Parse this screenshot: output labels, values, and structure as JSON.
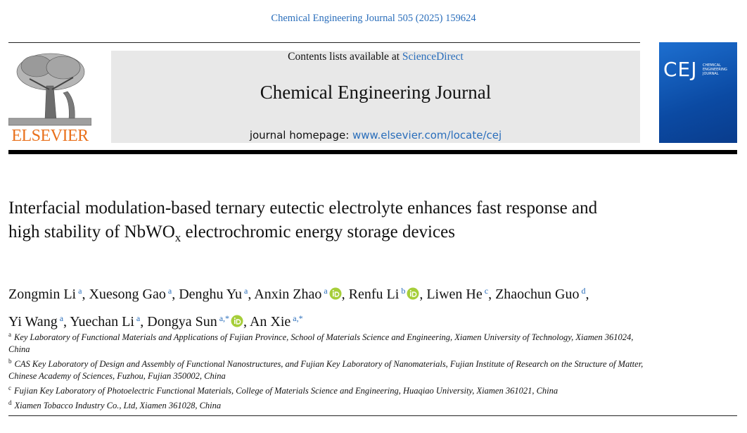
{
  "header": {
    "citation": "Chemical Engineering Journal 505 (2025) 159624",
    "publisher": "ELSEVIER",
    "contents_prefix": "Contents lists available at ",
    "contents_link": "ScienceDirect",
    "journal": "Chemical Engineering Journal",
    "homepage_prefix": "journal homepage: ",
    "homepage_link": "www.elsevier.com/locate/cej",
    "cover": {
      "logo": "CEJ",
      "lines": [
        "CHEMICAL",
        "ENGINEERING",
        "JOURNAL"
      ]
    }
  },
  "article": {
    "title_before": "Interfacial modulation-based ternary eutectic electrolyte enhances fast response and high stability of NbWO",
    "title_sub": "x",
    "title_after": " electrochromic energy storage devices",
    "authors": {
      "separator": ",",
      "list": [
        {
          "name": "Zongmin Li",
          "affiliation": "a",
          "orcid": false
        },
        {
          "name": "Xuesong Gao",
          "affiliation": "a",
          "orcid": false
        },
        {
          "name": "Denghu Yu",
          "affiliation": "a",
          "orcid": false
        },
        {
          "name": "Anxin Zhao",
          "affiliation": "a",
          "orcid": true
        },
        {
          "name": "Renfu Li",
          "affiliation": "b",
          "orcid": true
        },
        {
          "name": "Liwen He",
          "affiliation": "c",
          "orcid": false
        },
        {
          "name": "Zhaochun Guo",
          "affiliation": "d",
          "orcid": false
        },
        {
          "name": "Yi Wang",
          "affiliation": "a",
          "orcid": false
        },
        {
          "name": "Yuechan Li",
          "affiliation": "a",
          "orcid": false
        },
        {
          "name": "Dongya Sun",
          "affiliation": "a,*",
          "orcid": true
        },
        {
          "name": "An Xie",
          "affiliation": "a,*",
          "orcid": false
        }
      ]
    },
    "affiliations": [
      {
        "label": "a",
        "text": "Key Laboratory of Functional Materials and Applications of Fujian Province, School of Materials Science and Engineering, Xiamen University of Technology, Xiamen 361024, China"
      },
      {
        "label": "b",
        "text": "CAS Key Laboratory of Design and Assembly of Functional Nanostructures, and Fujian Key Laboratory of Nanomaterials, Fujian Institute of Research on the Structure of Matter, Chinese Academy of Sciences, Fuzhou, Fujian 350002, China"
      },
      {
        "label": "c",
        "text": "Fujian Key Laboratory of Photoelectric Functional Materials, College of Materials Science and Engineering, Huaqiao University, Xiamen 361021, China"
      },
      {
        "label": "d",
        "text": "Xiamen Tobacco Industry Co., Ltd, Xiamen 361028, China"
      }
    ]
  }
}
